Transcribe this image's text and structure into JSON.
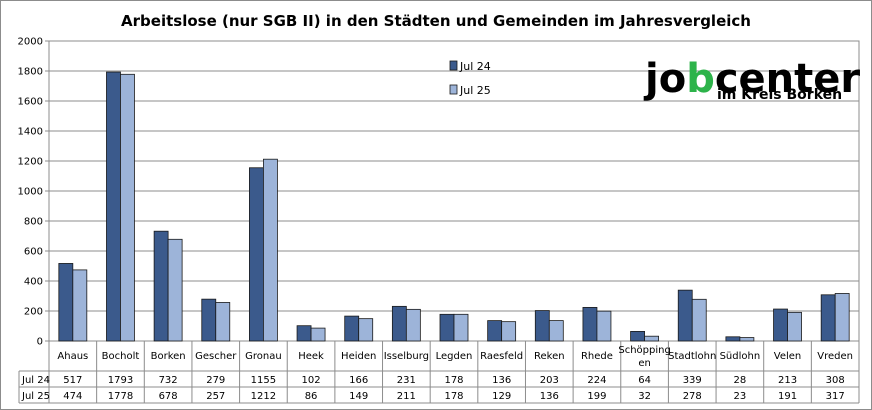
{
  "chart_data": {
    "type": "bar",
    "title": "Arbeitslose (nur SGB II) in den Städten und Gemeinden im Jahresvergleich",
    "categories": [
      "Ahaus",
      "Bocholt",
      "Borken",
      "Gescher",
      "Gronau",
      "Heek",
      "Heiden",
      "Isselburg",
      "Legden",
      "Raesfeld",
      "Reken",
      "Rhede",
      "Schöpping en",
      "Stadtlohn",
      "Südlohn",
      "Velen",
      "Vreden"
    ],
    "series": [
      {
        "name": "Jul 24",
        "color": "#3b5a8c",
        "values": [
          517,
          1793,
          732,
          279,
          1155,
          102,
          166,
          231,
          178,
          136,
          203,
          224,
          64,
          339,
          28,
          213,
          308
        ]
      },
      {
        "name": "Jul 25",
        "color": "#9db4d9",
        "values": [
          474,
          1778,
          678,
          257,
          1212,
          86,
          149,
          211,
          178,
          129,
          136,
          199,
          32,
          278,
          23,
          191,
          317
        ]
      }
    ],
    "ylim": [
      0,
      2000
    ],
    "yticks": [
      0,
      200,
      400,
      600,
      800,
      1000,
      1200,
      1400,
      1600,
      1800,
      2000
    ],
    "grid": true,
    "legend_position": "top-center",
    "data_table": true
  },
  "logo": {
    "brand": "jobcenter",
    "subtitle": "im Kreis Borken",
    "accent_color": "#2db34a"
  }
}
